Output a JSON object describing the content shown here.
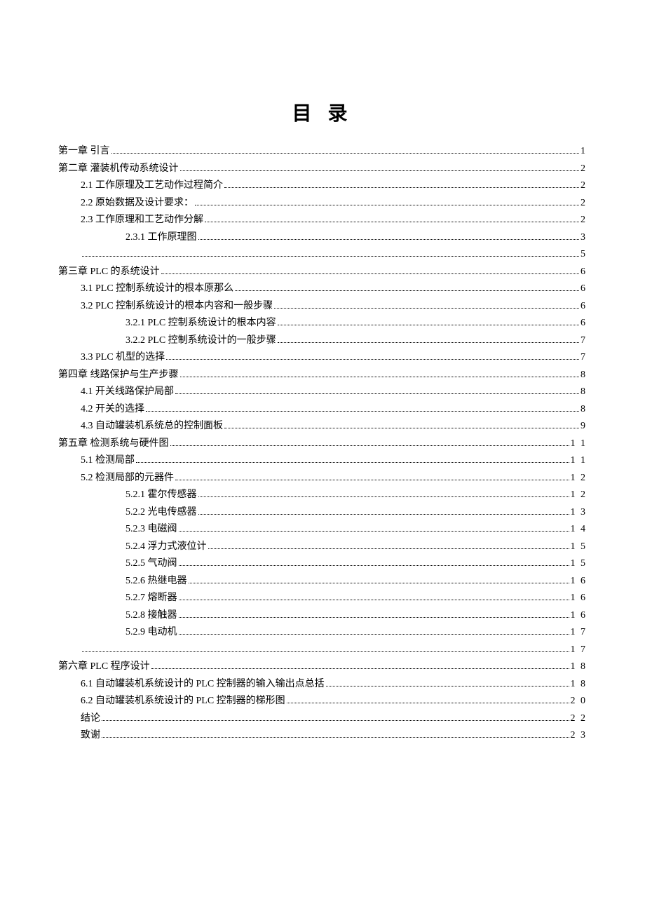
{
  "title": "目 录",
  "entries": [
    {
      "label": "第一章  引言",
      "page": "1",
      "indent": 0
    },
    {
      "label": "第二章  灌装机传动系统设计",
      "page": "2",
      "indent": 0
    },
    {
      "label": "2.1  工作原理及工艺动作过程简介",
      "page": "2",
      "indent": 1
    },
    {
      "label": "2.2  原始数据及设计要求：",
      "page": "2",
      "indent": 1
    },
    {
      "label": "2.3  工作原理和工艺动作分解",
      "page": "2",
      "indent": 1
    },
    {
      "label": "2.3.1  工作原理图",
      "page": "3",
      "indent": 2
    },
    {
      "label": "",
      "page": "5",
      "indent": -1
    },
    {
      "label": "第三章  PLC 的系统设计",
      "page": "6",
      "indent": 0
    },
    {
      "label": "3.1 PLC 控制系统设计的根本原那么",
      "page": "6",
      "indent": 1
    },
    {
      "label": "3.2 PLC 控制系统设计的根本内容和一般步骤",
      "page": "6",
      "indent": 1
    },
    {
      "label": "3.2.1 PLC 控制系统设计的根本内容",
      "page": "6",
      "indent": 2
    },
    {
      "label": "3.2.2 PLC 控制系统设计的一般步骤",
      "page": "7",
      "indent": 2
    },
    {
      "label": "3.3 PLC 机型的选择",
      "page": "7",
      "indent": 1
    },
    {
      "label": "第四章  线路保护与生产步骤",
      "page": "8",
      "indent": 0
    },
    {
      "label": "4.1  开关线路保护局部",
      "page": "8",
      "indent": 1
    },
    {
      "label": "4.2  开关的选择",
      "page": "8",
      "indent": 1
    },
    {
      "label": "4.3  自动罐装机系统总的控制面板",
      "page": "9",
      "indent": 1
    },
    {
      "label": "第五章  检测系统与硬件图",
      "page": "1 1",
      "indent": 0
    },
    {
      "label": "5.1  检测局部",
      "page": "1 1",
      "indent": 1
    },
    {
      "label": "5.2  检测局部的元器件",
      "page": "1 2",
      "indent": 1
    },
    {
      "label": "5.2.1  霍尔传感器",
      "page": "1 2",
      "indent": 2
    },
    {
      "label": "5.2.2  光电传感器",
      "page": "1 3",
      "indent": 2
    },
    {
      "label": "5.2.3  电磁阀",
      "page": "1 4",
      "indent": 2
    },
    {
      "label": "5.2.4  浮力式液位计",
      "page": "1 5",
      "indent": 2
    },
    {
      "label": "5.2.5  气动阀",
      "page": "1 5",
      "indent": 2
    },
    {
      "label": "5.2.6  热继电器",
      "page": "1 6",
      "indent": 2
    },
    {
      "label": "5.2.7  熔断器",
      "page": "1 6",
      "indent": 2
    },
    {
      "label": "5.2.8  接触器",
      "page": "1 6",
      "indent": 2
    },
    {
      "label": "5.2.9  电动机",
      "page": "1 7",
      "indent": 2
    },
    {
      "label": "",
      "page": "1 7",
      "indent": -1
    },
    {
      "label": "第六章  PLC 程序设计",
      "page": "1 8",
      "indent": 0
    },
    {
      "label": "6.1  自动罐装机系统设计的 PLC 控制器的输入输出点总括",
      "page": "1 8",
      "indent": 1
    },
    {
      "label": "6.2  自动罐装机系统设计的 PLC 控制器的梯形图",
      "page": "2 0",
      "indent": 1
    },
    {
      "label": "结论",
      "page": "2 2",
      "indent": 1
    },
    {
      "label": "致谢",
      "page": "2 3",
      "indent": 1
    }
  ]
}
